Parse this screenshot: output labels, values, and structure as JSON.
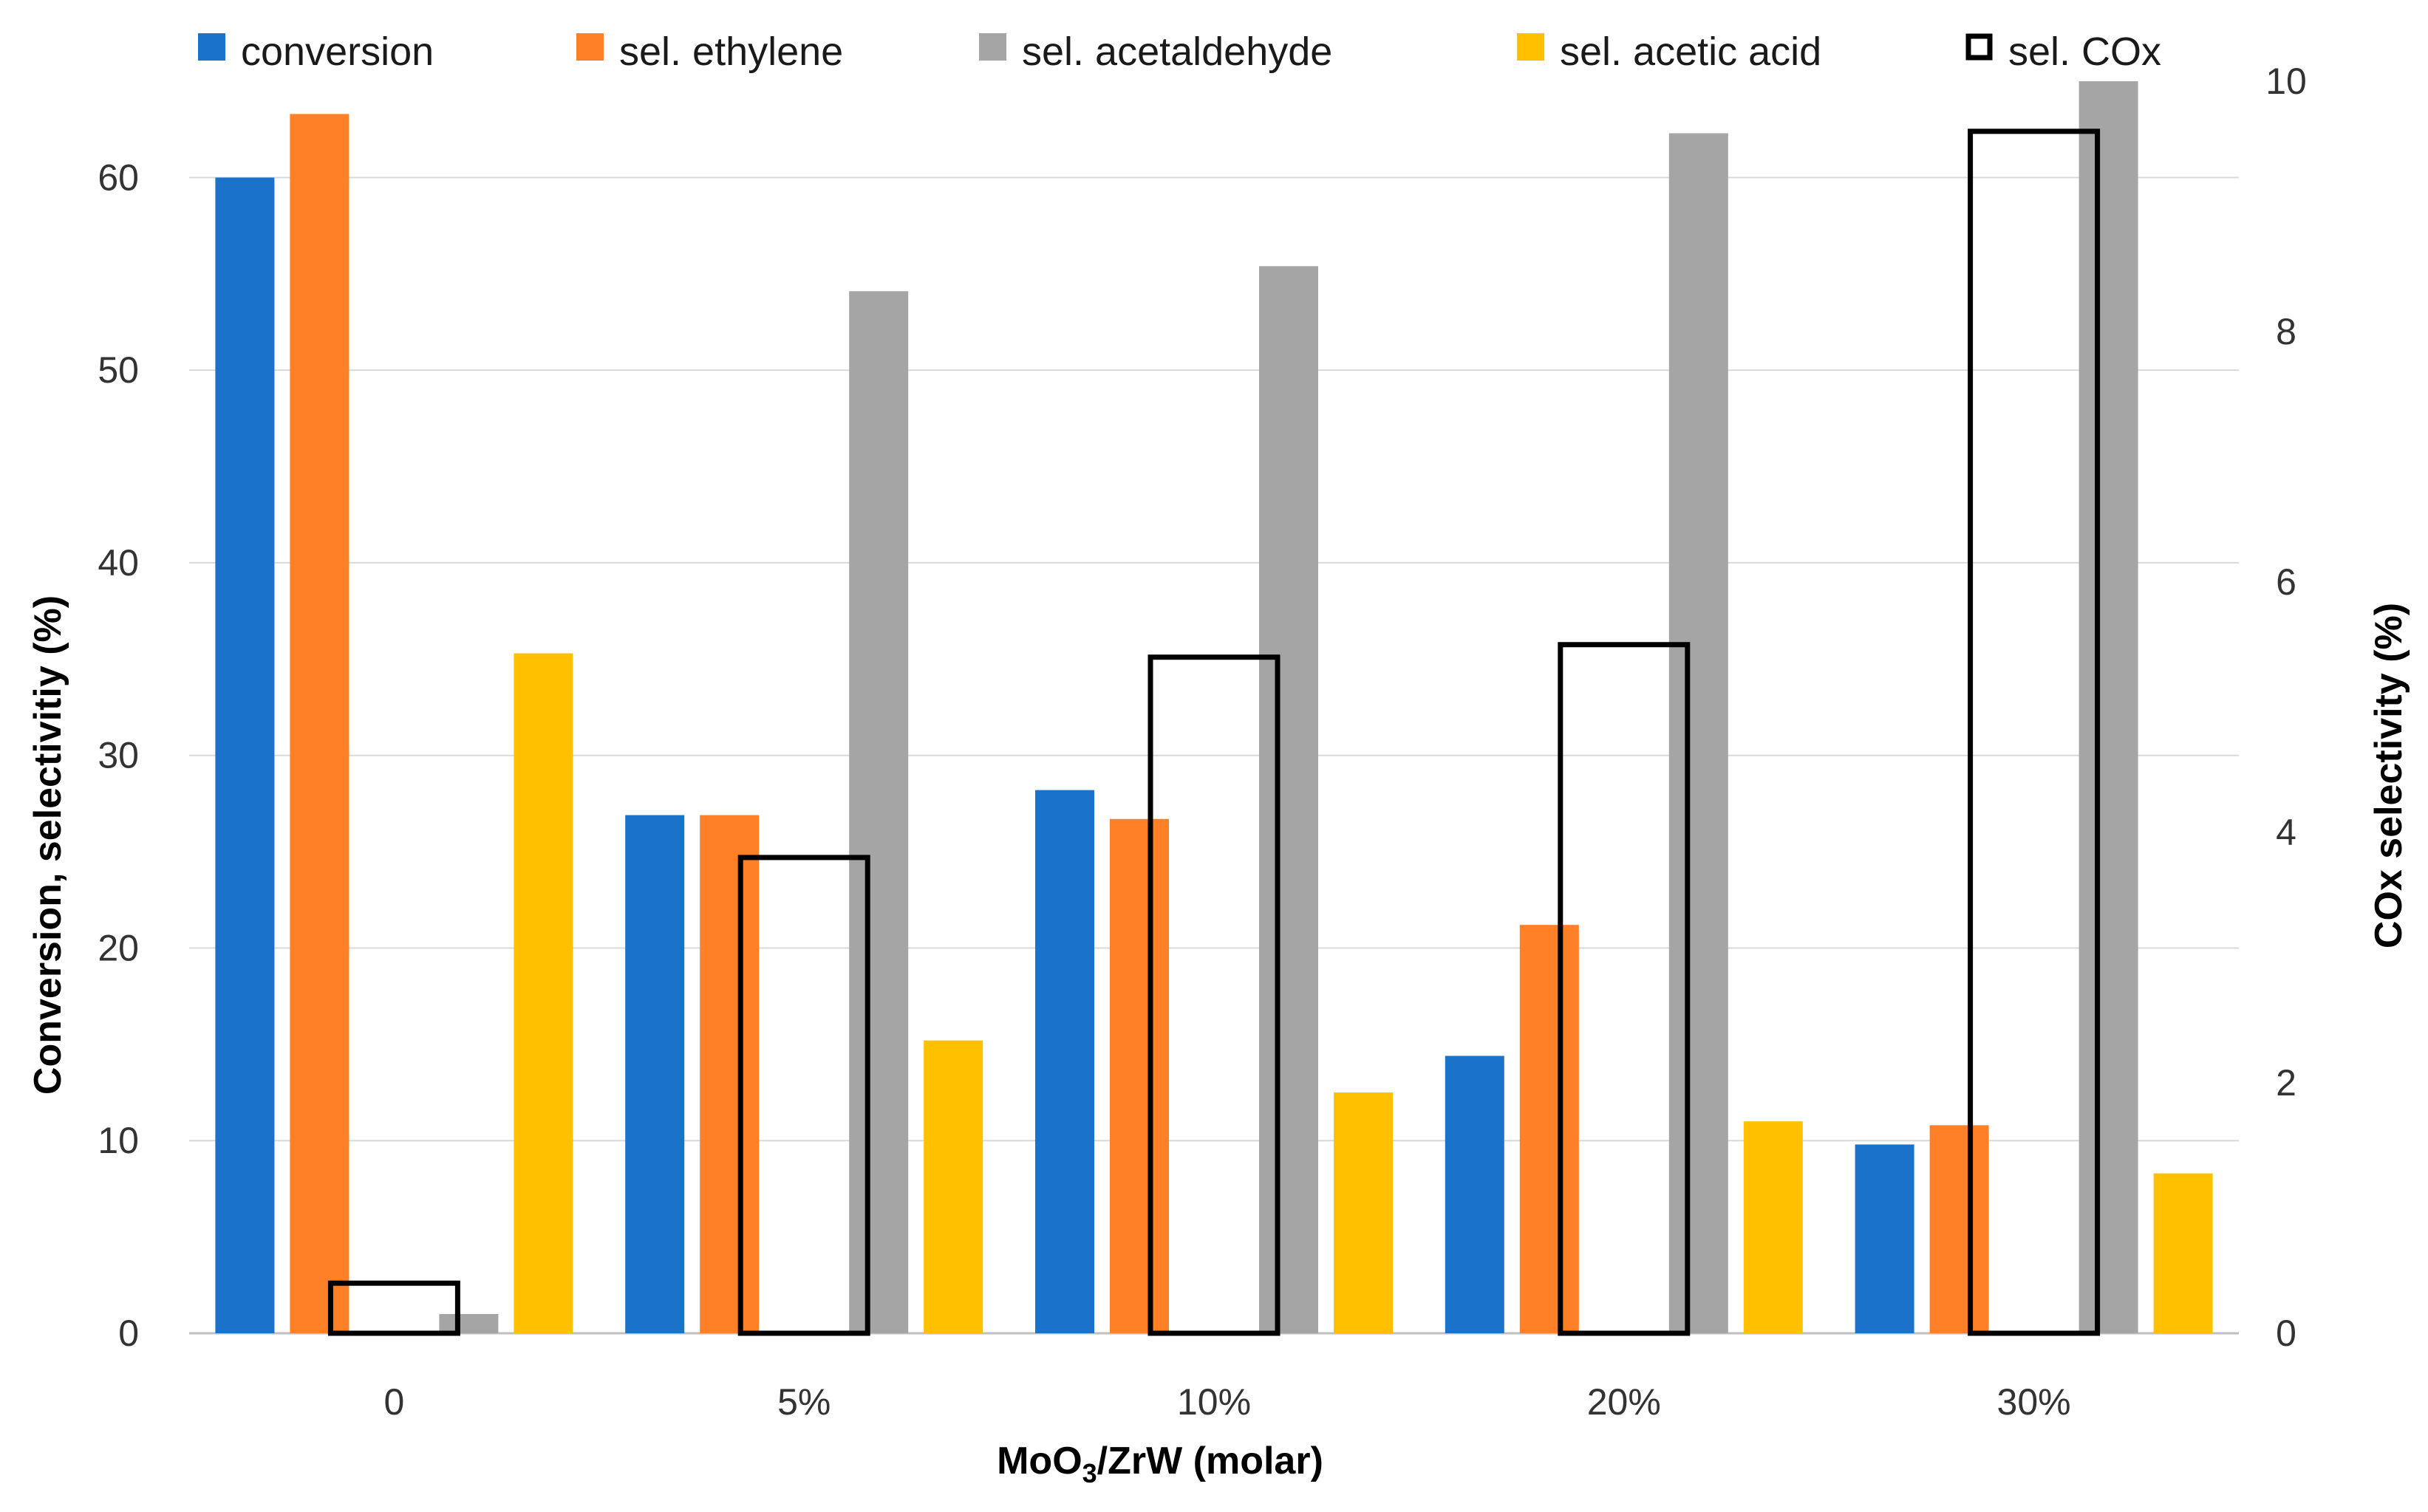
{
  "chart_data": {
    "type": "bar",
    "categories": [
      "0",
      "5%",
      "10%",
      "20%",
      "30%"
    ],
    "series": [
      {
        "name": "conversion",
        "axis": "left",
        "color": "#1a73c8",
        "style": "fill",
        "values": [
          60.0,
          26.9,
          28.2,
          14.4,
          9.8
        ]
      },
      {
        "name": "sel. ethylene",
        "axis": "left",
        "color": "#ff8027",
        "style": "fill",
        "values": [
          63.3,
          26.9,
          26.7,
          21.2,
          10.8
        ]
      },
      {
        "name": "sel. COx",
        "axis": "right",
        "color": "#000000",
        "style": "outline",
        "values": [
          0.4,
          3.8,
          5.4,
          5.5,
          9.6
        ]
      },
      {
        "name": "sel. acetaldehyde",
        "axis": "left",
        "color": "#a5a5a5",
        "style": "fill",
        "values": [
          1.0,
          54.1,
          55.4,
          62.3,
          65.0
        ]
      },
      {
        "name": "sel. acetic acid",
        "axis": "left",
        "color": "#ffc000",
        "style": "fill",
        "values": [
          35.3,
          15.2,
          12.5,
          11.0,
          8.3
        ]
      }
    ],
    "legend_order": [
      "conversion",
      "sel. ethylene",
      "sel. acetaldehyde",
      "sel. acetic acid",
      "sel. COx"
    ],
    "legend_position": "top",
    "xlabel_main": "MoO",
    "xlabel_sub": "3",
    "xlabel_rest": "/ZrW  (molar)",
    "ylabel": "Conversion, selectivitiy (%)",
    "y2label": "COx selectivity (%)",
    "ylim": [
      0,
      65
    ],
    "y2lim": [
      0,
      10
    ],
    "yticks": [
      "0",
      "10",
      "20",
      "30",
      "40",
      "50",
      "60"
    ],
    "y2ticks": [
      "0",
      "2",
      "4",
      "6",
      "8",
      "10"
    ],
    "grid": true
  }
}
